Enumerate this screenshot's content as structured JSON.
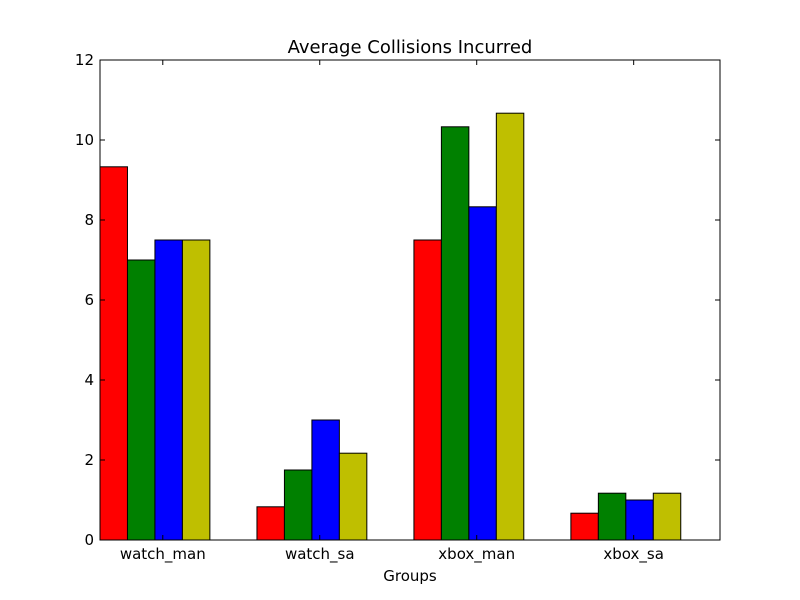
{
  "chart_data": {
    "type": "bar",
    "title": "Average Collisions Incurred",
    "xlabel": "Groups",
    "ylabel": "",
    "ylim": [
      0,
      12
    ],
    "yticks": [
      0,
      2,
      4,
      6,
      8,
      10,
      12
    ],
    "categories": [
      "watch_man",
      "watch_sa",
      "xbox_man",
      "xbox_sa"
    ],
    "grid": false,
    "legend": "none",
    "series": [
      {
        "color": "#ff0000",
        "values": [
          9.33,
          0.83,
          7.5,
          0.67
        ]
      },
      {
        "color": "#008000",
        "values": [
          7.0,
          1.75,
          10.33,
          1.17
        ]
      },
      {
        "color": "#0000ff",
        "values": [
          7.5,
          3.0,
          8.33,
          1.0
        ]
      },
      {
        "color": "#bfbf00",
        "values": [
          7.5,
          2.17,
          10.67,
          1.17
        ]
      }
    ]
  }
}
